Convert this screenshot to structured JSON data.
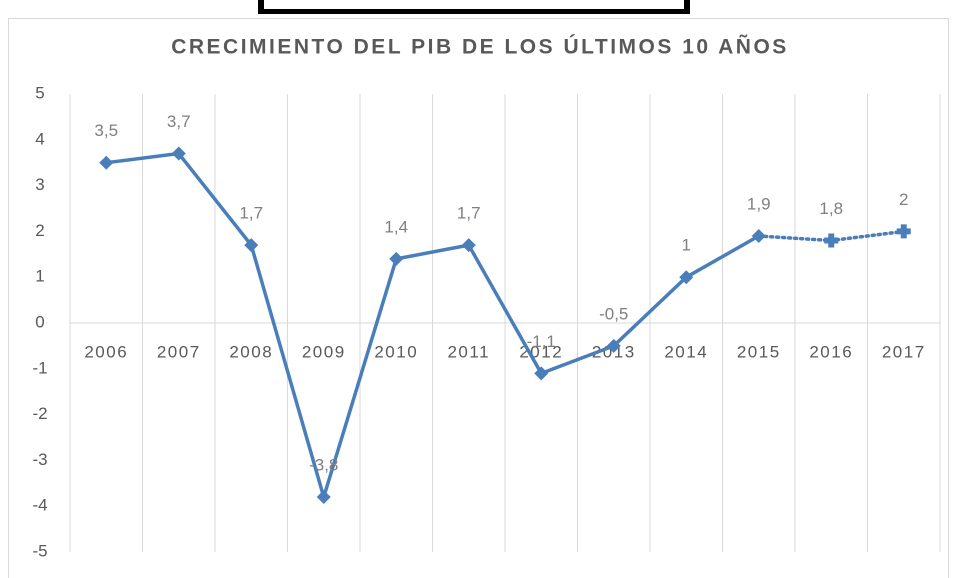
{
  "chart_data": {
    "type": "line",
    "title": "CRECIMIENTO DEL PIB  DE LOS ÚLTIMOS 10 AÑOS",
    "categories": [
      "2006",
      "2007",
      "2008",
      "2009",
      "2010",
      "2011",
      "2012",
      "2013",
      "2014",
      "2015",
      "2016",
      "2017"
    ],
    "values": [
      3.5,
      3.7,
      1.7,
      -3.8,
      1.4,
      1.7,
      -1.1,
      -0.5,
      1,
      1.9,
      1.8,
      2
    ],
    "value_labels": [
      "3,5",
      "3,7",
      "1,7",
      "-3,8",
      "1,4",
      "1,7",
      "-1,1",
      "-0,5",
      "1",
      "1,9",
      "1,8",
      "2"
    ],
    "markers": [
      "diamond",
      "diamond",
      "diamond",
      "diamond",
      "diamond",
      "diamond",
      "diamond",
      "diamond",
      "diamond",
      "diamond",
      "plus",
      "plus"
    ],
    "line_styles": [
      "solid",
      "solid",
      "solid",
      "solid",
      "solid",
      "solid",
      "solid",
      "solid",
      "solid",
      "solid",
      "dotted",
      "dotted"
    ],
    "color": "#4a7ebb",
    "ylim": [
      -5,
      5
    ],
    "yticks": [
      -5,
      -4,
      -3,
      -2,
      -1,
      0,
      1,
      2,
      3,
      4,
      5
    ],
    "grid": true
  }
}
